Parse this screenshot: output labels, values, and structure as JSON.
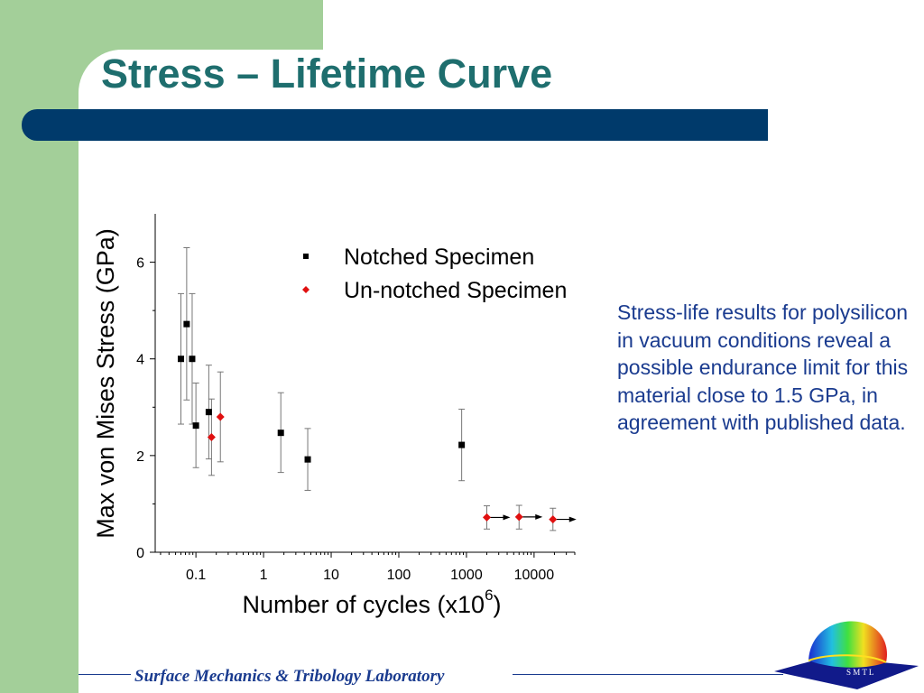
{
  "slide": {
    "title": "Stress – Lifetime Curve",
    "caption": "Stress-life results for polysilicon in vacuum conditions reveal a possible endurance limit for this material close to 1.5 GPa, in agreement with published data.",
    "footer": "Surface Mechanics & Tribology Laboratory",
    "logo_text": "S M T L"
  },
  "colors": {
    "title": "#1e6e6e",
    "bar": "#003a6b",
    "sidebar": "#a3cf99",
    "caption": "#1a3b8f",
    "notched": "#000000",
    "unnotched": "#e01010"
  },
  "chart_data": {
    "type": "scatter",
    "xscale": "log",
    "xlabel": "Number of cycles (x10^6)",
    "xlabel_base": "Number of cycles (x10",
    "xlabel_exp": "6",
    "xlabel_tail": ")",
    "ylabel": "Max von Mises Stress (GPa)",
    "xlim": [
      0.025,
      40000
    ],
    "ylim": [
      0,
      7
    ],
    "xticks": [
      0.1,
      1,
      10,
      100,
      1000,
      10000
    ],
    "xticklabels": [
      "0.1",
      "1",
      "10",
      "100",
      "1000",
      "10000"
    ],
    "yticks": [
      0,
      2,
      4,
      6
    ],
    "yticklabels": [
      "0",
      "2",
      "4",
      "6"
    ],
    "legend": "top-right",
    "series": [
      {
        "name": "Notched Specimen",
        "marker": "square",
        "color": "#000000",
        "points": [
          {
            "x": 0.06,
            "y": 4.0,
            "lo": 2.65,
            "hi": 5.35
          },
          {
            "x": 0.073,
            "y": 4.72,
            "lo": 3.15,
            "hi": 6.3
          },
          {
            "x": 0.088,
            "y": 4.0,
            "lo": 2.65,
            "hi": 5.35
          },
          {
            "x": 0.1,
            "y": 2.62,
            "lo": 1.75,
            "hi": 3.5
          },
          {
            "x": 0.155,
            "y": 2.9,
            "lo": 1.93,
            "hi": 3.87
          },
          {
            "x": 1.8,
            "y": 2.47,
            "lo": 1.65,
            "hi": 3.3
          },
          {
            "x": 4.5,
            "y": 1.92,
            "lo": 1.28,
            "hi": 2.56
          },
          {
            "x": 850,
            "y": 2.22,
            "lo": 1.48,
            "hi": 2.96
          }
        ]
      },
      {
        "name": "Un-notched Specimen",
        "marker": "diamond",
        "color": "#e01010",
        "points": [
          {
            "x": 0.17,
            "y": 2.38,
            "lo": 1.59,
            "hi": 3.17
          },
          {
            "x": 0.23,
            "y": 2.8,
            "lo": 1.87,
            "hi": 3.73
          },
          {
            "x": 2000,
            "y": 0.72,
            "lo": 0.48,
            "hi": 0.96,
            "runout": true
          },
          {
            "x": 6000,
            "y": 0.73,
            "lo": 0.48,
            "hi": 0.97,
            "runout": true
          },
          {
            "x": 19000,
            "y": 0.68,
            "lo": 0.45,
            "hi": 0.91,
            "runout": true
          }
        ]
      }
    ]
  }
}
